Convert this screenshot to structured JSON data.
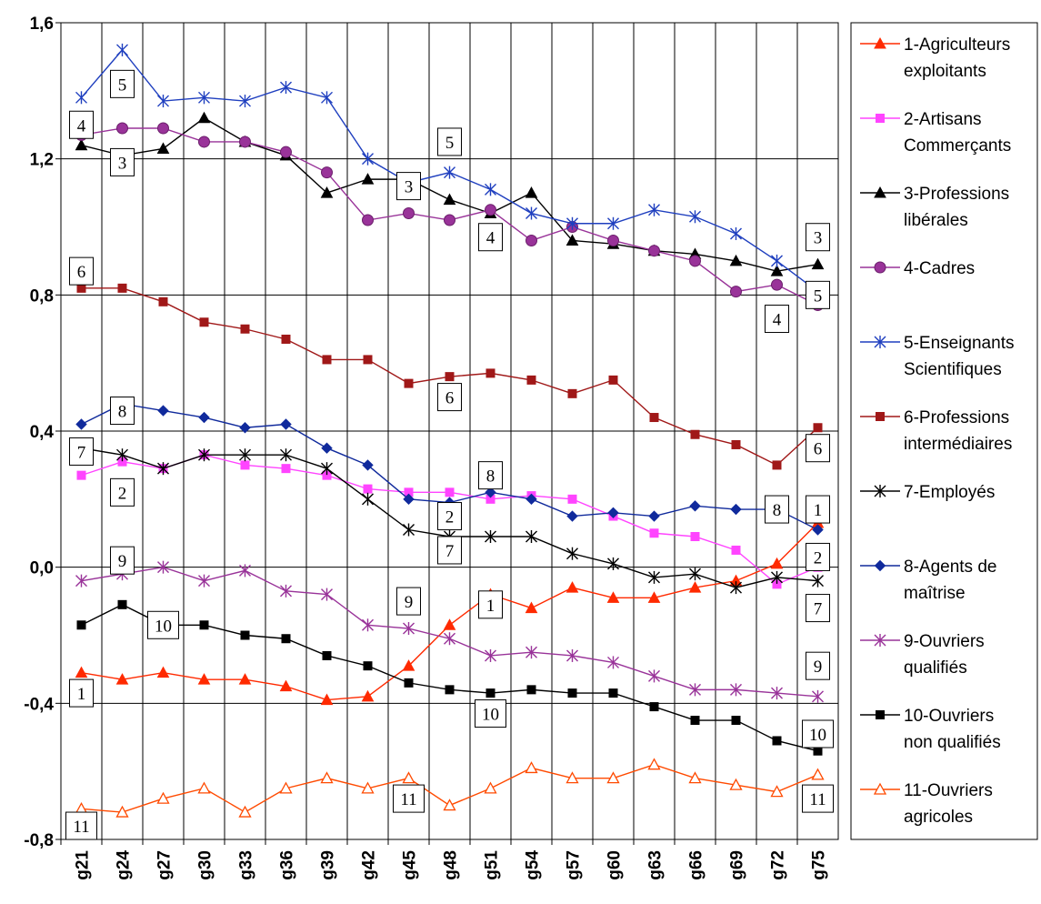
{
  "chart_data": {
    "type": "line",
    "title": "",
    "xlabel": "",
    "ylabel": "",
    "ylim": [
      -0.8,
      1.6
    ],
    "yticks": [
      -0.8,
      -0.4,
      0.0,
      0.4,
      0.8,
      1.2,
      1.6
    ],
    "ytick_labels": [
      "-0,8",
      "-0,4",
      "0,0",
      "0,4",
      "0,8",
      "1,2",
      "1,6"
    ],
    "grid": "horizontal and vertical",
    "legend_position": "right",
    "categories": [
      "g21",
      "g24",
      "g27",
      "g30",
      "g33",
      "g36",
      "g39",
      "g42",
      "g45",
      "g48",
      "g51",
      "g54",
      "g57",
      "g60",
      "g63",
      "g66",
      "g69",
      "g72",
      "g75"
    ],
    "series": [
      {
        "name": "1-Agriculteurs exploitants",
        "legend_lines": [
          "1-Agriculteurs",
          "exploitants"
        ],
        "color": "#ff2a00",
        "marker": "triangle-filled",
        "values": [
          -0.31,
          -0.33,
          -0.31,
          -0.33,
          -0.33,
          -0.35,
          -0.39,
          -0.38,
          -0.29,
          -0.17,
          -0.08,
          -0.12,
          -0.06,
          -0.09,
          -0.09,
          -0.06,
          -0.04,
          0.01,
          0.13
        ]
      },
      {
        "name": "2-Artisans Commerçants",
        "legend_lines": [
          "2-Artisans",
          "Commerçants"
        ],
        "color": "#ff44ff",
        "marker": "square",
        "values": [
          0.27,
          0.31,
          0.29,
          0.33,
          0.3,
          0.29,
          0.27,
          0.23,
          0.22,
          0.22,
          0.2,
          0.21,
          0.2,
          0.15,
          0.1,
          0.09,
          0.05,
          -0.05,
          0.0
        ]
      },
      {
        "name": "3-Professions libérales",
        "legend_lines": [
          "3-Professions",
          "libérales"
        ],
        "color": "#000000",
        "marker": "triangle-filled",
        "values": [
          1.24,
          1.21,
          1.23,
          1.32,
          1.25,
          1.21,
          1.1,
          1.14,
          1.14,
          1.08,
          1.04,
          1.1,
          0.96,
          0.95,
          0.93,
          0.92,
          0.9,
          0.87,
          0.89
        ]
      },
      {
        "name": "4-Cadres",
        "legend_lines": [
          "4-Cadres"
        ],
        "color": "#993399",
        "marker": "circle",
        "values": [
          1.27,
          1.29,
          1.29,
          1.25,
          1.25,
          1.22,
          1.16,
          1.02,
          1.04,
          1.02,
          1.05,
          0.96,
          1.0,
          0.96,
          0.93,
          0.9,
          0.81,
          0.83,
          0.77
        ]
      },
      {
        "name": "5-Enseignants Scientifiques",
        "legend_lines": [
          "5-Enseignants",
          "Scientifiques"
        ],
        "color": "#1f3fbf",
        "marker": "star",
        "values": [
          1.38,
          1.52,
          1.37,
          1.38,
          1.37,
          1.41,
          1.38,
          1.2,
          1.13,
          1.16,
          1.11,
          1.04,
          1.01,
          1.01,
          1.05,
          1.03,
          0.98,
          0.9,
          0.81
        ]
      },
      {
        "name": "6-Professions intermédiaires",
        "legend_lines": [
          "6-Professions",
          "intermédiaires"
        ],
        "color": "#a01818",
        "marker": "square",
        "values": [
          0.82,
          0.82,
          0.78,
          0.72,
          0.7,
          0.67,
          0.61,
          0.61,
          0.54,
          0.56,
          0.57,
          0.55,
          0.51,
          0.55,
          0.44,
          0.39,
          0.36,
          0.3,
          0.41
        ]
      },
      {
        "name": "7-Employés",
        "legend_lines": [
          "7-Employés"
        ],
        "color": "#000000",
        "marker": "star",
        "values": [
          0.35,
          0.33,
          0.29,
          0.33,
          0.33,
          0.33,
          0.29,
          0.2,
          0.11,
          0.09,
          0.09,
          0.09,
          0.04,
          0.01,
          -0.03,
          -0.02,
          -0.06,
          -0.03,
          -0.04
        ]
      },
      {
        "name": "8-Agents de maîtrise",
        "legend_lines": [
          "8-Agents de",
          "maîtrise"
        ],
        "color": "#102a9c",
        "marker": "diamond",
        "values": [
          0.42,
          0.48,
          0.46,
          0.44,
          0.41,
          0.42,
          0.35,
          0.3,
          0.2,
          0.19,
          0.22,
          0.2,
          0.15,
          0.16,
          0.15,
          0.18,
          0.17,
          0.17,
          0.11
        ]
      },
      {
        "name": "9-Ouvriers qualifiés",
        "legend_lines": [
          "9-Ouvriers",
          "qualifiés"
        ],
        "color": "#993399",
        "marker": "star",
        "values": [
          -0.04,
          -0.02,
          0.0,
          -0.04,
          -0.01,
          -0.07,
          -0.08,
          -0.17,
          -0.18,
          -0.21,
          -0.26,
          -0.25,
          -0.26,
          -0.28,
          -0.32,
          -0.36,
          -0.36,
          -0.37,
          -0.38
        ]
      },
      {
        "name": "10-Ouvriers non qualifiés",
        "legend_lines": [
          "10-Ouvriers",
          "non qualifiés"
        ],
        "color": "#000000",
        "marker": "square",
        "values": [
          -0.17,
          -0.11,
          -0.17,
          -0.17,
          -0.2,
          -0.21,
          -0.26,
          -0.29,
          -0.34,
          -0.36,
          -0.37,
          -0.36,
          -0.37,
          -0.37,
          -0.41,
          -0.45,
          -0.45,
          -0.51,
          -0.54
        ]
      },
      {
        "name": "11-Ouvriers agricoles",
        "legend_lines": [
          "11-Ouvriers",
          "agricoles"
        ],
        "color": "#ff4a00",
        "marker": "triangle-open",
        "values": [
          -0.71,
          -0.72,
          -0.68,
          -0.65,
          -0.72,
          -0.65,
          -0.62,
          -0.65,
          -0.62,
          -0.7,
          -0.65,
          -0.59,
          -0.62,
          -0.62,
          -0.58,
          -0.62,
          -0.64,
          -0.66,
          -0.61
        ]
      }
    ],
    "annotations": [
      {
        "label": "5",
        "x": "g24",
        "y": 1.42
      },
      {
        "label": "4",
        "x": "g21",
        "y": 1.3
      },
      {
        "label": "3",
        "x": "g24",
        "y": 1.19
      },
      {
        "label": "5",
        "x": "g48",
        "y": 1.25
      },
      {
        "label": "3",
        "x": "g45",
        "y": 1.12
      },
      {
        "label": "4",
        "x": "g51",
        "y": 0.97
      },
      {
        "label": "3",
        "x": "g75",
        "y": 0.97
      },
      {
        "label": "5",
        "x": "g75",
        "y": 0.8
      },
      {
        "label": "4",
        "x": "g72",
        "y": 0.73
      },
      {
        "label": "6",
        "x": "g21",
        "y": 0.87
      },
      {
        "label": "6",
        "x": "g48",
        "y": 0.5
      },
      {
        "label": "6",
        "x": "g75",
        "y": 0.35
      },
      {
        "label": "8",
        "x": "g24",
        "y": 0.46
      },
      {
        "label": "7",
        "x": "g21",
        "y": 0.34
      },
      {
        "label": "2",
        "x": "g24",
        "y": 0.22
      },
      {
        "label": "8",
        "x": "g51",
        "y": 0.27
      },
      {
        "label": "2",
        "x": "g48",
        "y": 0.15
      },
      {
        "label": "7",
        "x": "g48",
        "y": 0.05
      },
      {
        "label": "8",
        "x": "g72",
        "y": 0.17
      },
      {
        "label": "1",
        "x": "g75",
        "y": 0.17
      },
      {
        "label": "2",
        "x": "g75",
        "y": 0.03
      },
      {
        "label": "7",
        "x": "g75",
        "y": -0.12
      },
      {
        "label": "9",
        "x": "g24",
        "y": 0.02
      },
      {
        "label": "10",
        "x": "g27",
        "y": -0.17
      },
      {
        "label": "9",
        "x": "g45",
        "y": -0.1
      },
      {
        "label": "1",
        "x": "g51",
        "y": -0.11
      },
      {
        "label": "9",
        "x": "g75",
        "y": -0.29
      },
      {
        "label": "1",
        "x": "g21",
        "y": -0.37
      },
      {
        "label": "10",
        "x": "g51",
        "y": -0.43
      },
      {
        "label": "10",
        "x": "g75",
        "y": -0.49
      },
      {
        "label": "11",
        "x": "g45",
        "y": -0.68
      },
      {
        "label": "11",
        "x": "g21",
        "y": -0.76
      },
      {
        "label": "11",
        "x": "g75",
        "y": -0.68
      }
    ]
  }
}
